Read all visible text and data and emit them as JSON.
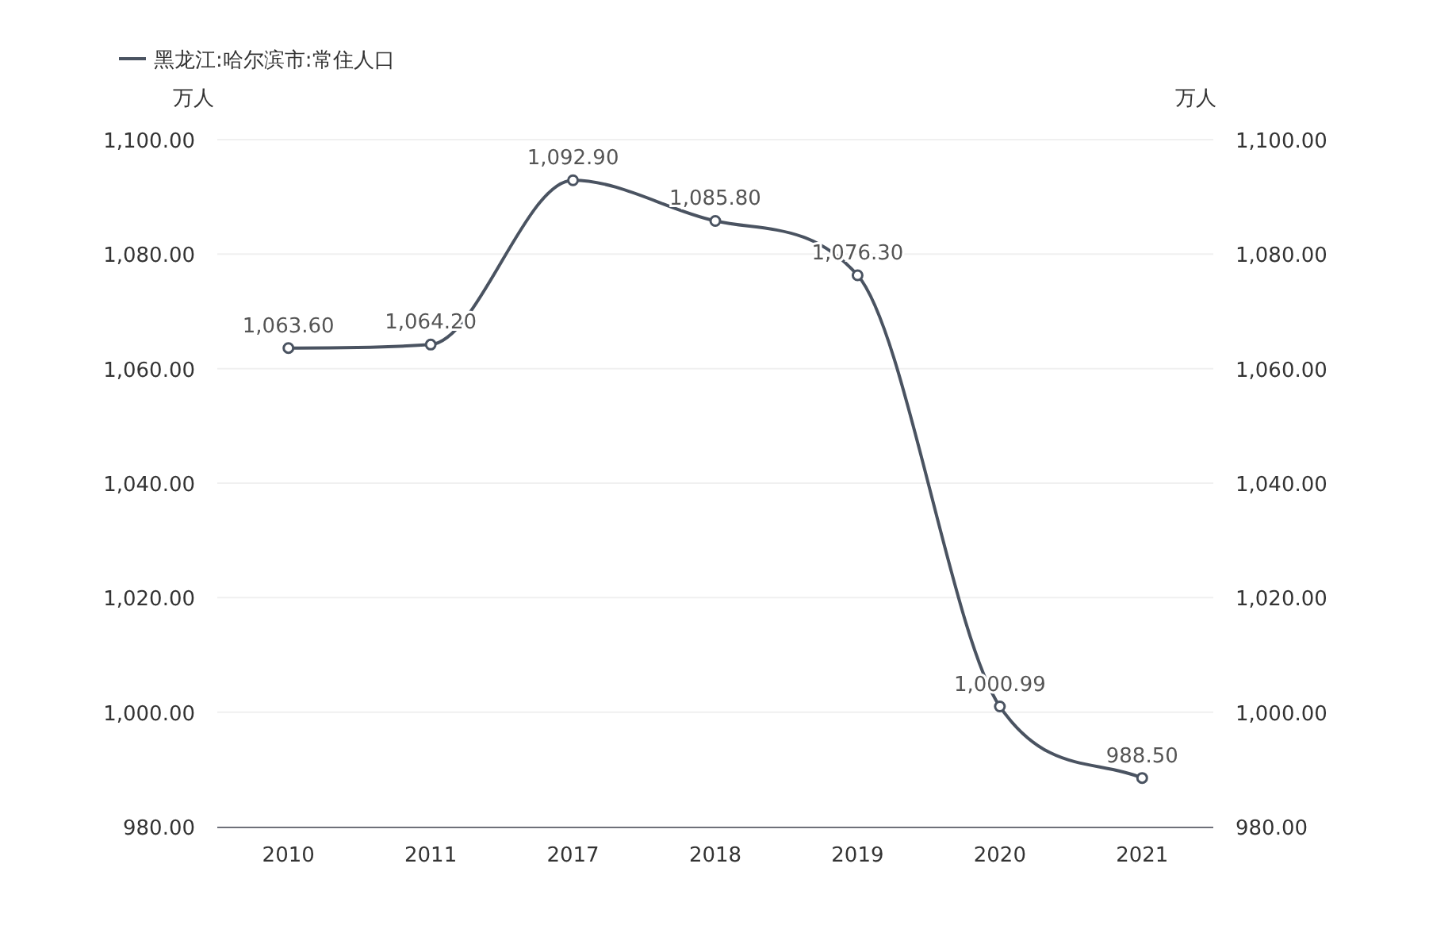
{
  "chart_data": {
    "type": "line",
    "categories": [
      "2010",
      "2011",
      "2017",
      "2018",
      "2019",
      "2020",
      "2021"
    ],
    "series": [
      {
        "name": "黑龙江:哈尔滨市:常住人口",
        "color": "#4a5361",
        "values": [
          1063.6,
          1064.2,
          1092.9,
          1085.8,
          1076.3,
          1000.99,
          988.5
        ],
        "value_labels": [
          "1,063.60",
          "1,064.20",
          "1,092.90",
          "1,085.80",
          "1,076.30",
          "1,000.99",
          "988.50"
        ]
      }
    ],
    "ylabel": "万人",
    "y2label": "万人",
    "ylim": [
      980,
      1100
    ],
    "yticks": [
      {
        "value": 980,
        "label": "980.00"
      },
      {
        "value": 1000,
        "label": "1,000.00"
      },
      {
        "value": 1020,
        "label": "1,020.00"
      },
      {
        "value": 1040,
        "label": "1,040.00"
      },
      {
        "value": 1060,
        "label": "1,060.00"
      },
      {
        "value": 1080,
        "label": "1,080.00"
      },
      {
        "value": 1100,
        "label": "1,100.00"
      }
    ],
    "y2lim": [
      980,
      1100
    ],
    "y2ticks": [
      {
        "value": 980,
        "label": "980.00"
      },
      {
        "value": 1000,
        "label": "1,000.00"
      },
      {
        "value": 1020,
        "label": "1,020.00"
      },
      {
        "value": 1040,
        "label": "1,040.00"
      },
      {
        "value": 1060,
        "label": "1,060.00"
      },
      {
        "value": 1080,
        "label": "1,080.00"
      },
      {
        "value": 1100,
        "label": "1,100.00"
      }
    ],
    "grid": "y",
    "legend": "top left",
    "marker": "circle",
    "line_style": "solid"
  }
}
